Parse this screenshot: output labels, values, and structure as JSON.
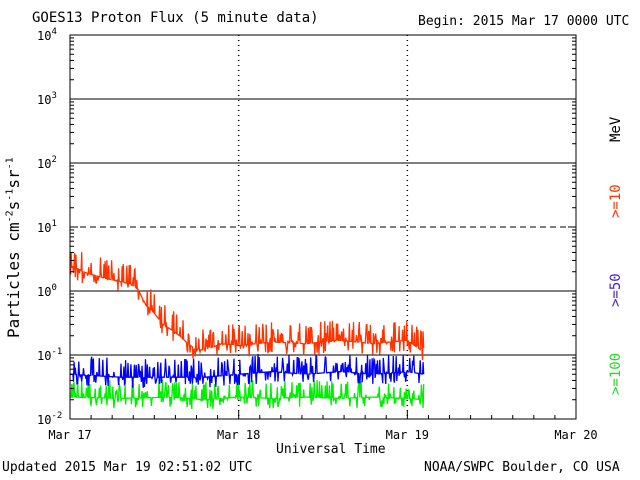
{
  "header": {
    "title": "GOES13 Proton Flux (5 minute data)",
    "begin": "Begin: 2015 Mar 17 0000 UTC"
  },
  "footer": {
    "updated": "Updated 2015 Mar 19 02:51:02 UTC",
    "credit": "NOAA/SWPC Boulder, CO USA"
  },
  "chart_data": {
    "type": "line",
    "title": "GOES13 Proton Flux (5 minute data)",
    "xlabel": "Universal Time",
    "ylabel": "Particles cm-2s-1sr-1",
    "yscale": "log",
    "ylim": [
      0.01,
      10000
    ],
    "xlim_days": [
      0,
      3
    ],
    "x_ticks": [
      "Mar 17",
      "Mar 18",
      "Mar 19",
      "Mar 20"
    ],
    "y_ticks": [
      {
        "base": "10",
        "exp": "-2"
      },
      {
        "base": "10",
        "exp": "-1"
      },
      {
        "base": "10",
        "exp": "0"
      },
      {
        "base": "10",
        "exp": "1"
      },
      {
        "base": "10",
        "exp": "2"
      },
      {
        "base": "10",
        "exp": "3"
      },
      {
        "base": "10",
        "exp": "4"
      }
    ],
    "threshold_line": 10,
    "legend_unit": "MeV",
    "series": [
      {
        "name": ">=10",
        "color": "#ff3300",
        "x": [
          0.0,
          0.05,
          0.1,
          0.2,
          0.3,
          0.35,
          0.4,
          0.45,
          0.5,
          0.55,
          0.6,
          0.65,
          0.7,
          0.75,
          0.8,
          0.9,
          1.0,
          1.2,
          1.4,
          1.6,
          1.8,
          2.0,
          2.1
        ],
        "y": [
          2.5,
          2.2,
          1.9,
          1.6,
          1.4,
          1.3,
          1.1,
          0.6,
          0.45,
          0.3,
          0.25,
          0.2,
          0.15,
          0.12,
          0.12,
          0.15,
          0.14,
          0.16,
          0.15,
          0.17,
          0.15,
          0.17,
          0.11
        ],
        "noise": 0.55
      },
      {
        "name": ">=50",
        "color": "#0000ff",
        "x": [
          0.0,
          0.3,
          0.6,
          0.8,
          1.0,
          1.2,
          1.4,
          1.6,
          1.8,
          2.0,
          2.1
        ],
        "y": [
          0.05,
          0.045,
          0.045,
          0.045,
          0.05,
          0.055,
          0.05,
          0.055,
          0.05,
          0.055,
          0.05
        ],
        "noise": 0.5
      },
      {
        "name": ">=100",
        "color": "#00ee00",
        "x": [
          0.0,
          0.3,
          0.6,
          0.8,
          1.0,
          1.2,
          1.4,
          1.6,
          1.8,
          2.0,
          2.1
        ],
        "y": [
          0.022,
          0.021,
          0.022,
          0.02,
          0.022,
          0.021,
          0.022,
          0.021,
          0.022,
          0.021,
          0.02
        ],
        "noise": 0.45
      }
    ]
  }
}
